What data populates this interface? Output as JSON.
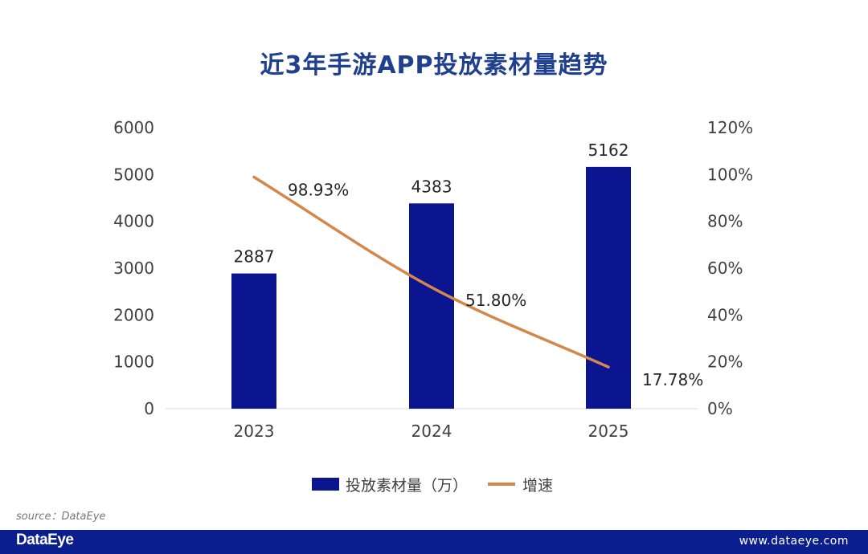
{
  "chart_data": {
    "type": "bar",
    "title": "近3年手游APP投放素材量趋势",
    "categories": [
      "2023",
      "2024",
      "2025"
    ],
    "series": [
      {
        "name": "投放素材量（万）",
        "type": "bar",
        "axis": "left",
        "values": [
          2887,
          4383,
          5162
        ],
        "labels": [
          "2887",
          "4383",
          "5162"
        ],
        "color": "#0b1590"
      },
      {
        "name": "增速",
        "type": "line",
        "axis": "right",
        "values": [
          98.93,
          51.8,
          17.78
        ],
        "labels": [
          "98.93%",
          "51.80%",
          "17.78%"
        ],
        "color": "#d4874a"
      }
    ],
    "y_left": {
      "min": 0,
      "max": 6000,
      "ticks": [
        "0",
        "1000",
        "2000",
        "3000",
        "4000",
        "5000",
        "6000"
      ]
    },
    "y_right": {
      "min": 0,
      "max": 120,
      "ticks": [
        "0%",
        "20%",
        "40%",
        "60%",
        "80%",
        "100%",
        "120%"
      ]
    },
    "legend_position": "bottom",
    "grid": false
  },
  "source": "source：DataEye",
  "footer": {
    "brand": "DataEye",
    "website": "www.dataeye.com"
  }
}
